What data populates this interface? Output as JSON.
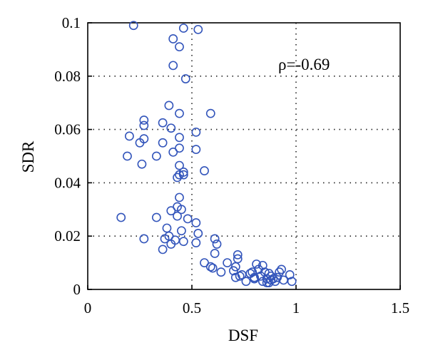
{
  "chart_data": {
    "type": "scatter",
    "title": "",
    "xlabel": "DSF",
    "ylabel": "SDR",
    "xlim": [
      0,
      1.5
    ],
    "ylim": [
      0,
      0.1
    ],
    "xticks": [
      0,
      0.5,
      1,
      1.5
    ],
    "xtick_labels": [
      "0",
      "0.5",
      "1",
      "1.5"
    ],
    "yticks": [
      0,
      0.02,
      0.04,
      0.06,
      0.08,
      0.1
    ],
    "ytick_labels": [
      "0",
      "0.02",
      "0.04",
      "0.06",
      "0.08",
      "0.1"
    ],
    "grid": "dotted",
    "marker_color": "#3355bb",
    "annotation": "ρ=-0.69",
    "series": [
      {
        "name": "samples",
        "points": [
          [
            0.22,
            0.099
          ],
          [
            0.46,
            0.098
          ],
          [
            0.53,
            0.0975
          ],
          [
            0.41,
            0.094
          ],
          [
            0.44,
            0.091
          ],
          [
            0.41,
            0.084
          ],
          [
            0.47,
            0.079
          ],
          [
            0.39,
            0.069
          ],
          [
            0.44,
            0.066
          ],
          [
            0.59,
            0.066
          ],
          [
            0.27,
            0.0635
          ],
          [
            0.27,
            0.0615
          ],
          [
            0.36,
            0.0625
          ],
          [
            0.4,
            0.0605
          ],
          [
            0.52,
            0.059
          ],
          [
            0.2,
            0.0575
          ],
          [
            0.27,
            0.0565
          ],
          [
            0.44,
            0.057
          ],
          [
            0.25,
            0.055
          ],
          [
            0.36,
            0.055
          ],
          [
            0.44,
            0.053
          ],
          [
            0.41,
            0.0515
          ],
          [
            0.52,
            0.0525
          ],
          [
            0.19,
            0.05
          ],
          [
            0.33,
            0.05
          ],
          [
            0.26,
            0.047
          ],
          [
            0.44,
            0.0465
          ],
          [
            0.56,
            0.0445
          ],
          [
            0.46,
            0.044
          ],
          [
            0.44,
            0.043
          ],
          [
            0.43,
            0.042
          ],
          [
            0.46,
            0.043
          ],
          [
            0.44,
            0.0345
          ],
          [
            0.43,
            0.031
          ],
          [
            0.4,
            0.0295
          ],
          [
            0.45,
            0.03
          ],
          [
            0.16,
            0.027
          ],
          [
            0.33,
            0.027
          ],
          [
            0.43,
            0.0275
          ],
          [
            0.48,
            0.0265
          ],
          [
            0.52,
            0.025
          ],
          [
            0.38,
            0.023
          ],
          [
            0.45,
            0.022
          ],
          [
            0.53,
            0.021
          ],
          [
            0.27,
            0.019
          ],
          [
            0.37,
            0.019
          ],
          [
            0.39,
            0.02
          ],
          [
            0.42,
            0.0185
          ],
          [
            0.4,
            0.017
          ],
          [
            0.46,
            0.018
          ],
          [
            0.52,
            0.0175
          ],
          [
            0.36,
            0.015
          ],
          [
            0.61,
            0.019
          ],
          [
            0.62,
            0.017
          ],
          [
            0.61,
            0.0135
          ],
          [
            0.56,
            0.01
          ],
          [
            0.59,
            0.0085
          ],
          [
            0.6,
            0.008
          ],
          [
            0.64,
            0.0065
          ],
          [
            0.67,
            0.01
          ],
          [
            0.72,
            0.013
          ],
          [
            0.72,
            0.0115
          ],
          [
            0.71,
            0.0085
          ],
          [
            0.7,
            0.007
          ],
          [
            0.74,
            0.0055
          ],
          [
            0.71,
            0.0045
          ],
          [
            0.73,
            0.005
          ],
          [
            0.76,
            0.003
          ],
          [
            0.79,
            0.0065
          ],
          [
            0.78,
            0.006
          ],
          [
            0.8,
            0.004
          ],
          [
            0.81,
            0.0095
          ],
          [
            0.82,
            0.0075
          ],
          [
            0.83,
            0.005
          ],
          [
            0.84,
            0.009
          ],
          [
            0.85,
            0.0065
          ],
          [
            0.86,
            0.004
          ],
          [
            0.87,
            0.006
          ],
          [
            0.88,
            0.005
          ],
          [
            0.88,
            0.0035
          ],
          [
            0.89,
            0.004
          ],
          [
            0.9,
            0.003
          ],
          [
            0.91,
            0.0045
          ],
          [
            0.92,
            0.0065
          ],
          [
            0.93,
            0.0075
          ],
          [
            0.94,
            0.0035
          ],
          [
            0.97,
            0.0055
          ],
          [
            0.98,
            0.003
          ],
          [
            0.84,
            0.003
          ],
          [
            0.86,
            0.0025
          ],
          [
            0.8,
            0.0045
          ],
          [
            0.87,
            0.0025
          ]
        ]
      }
    ]
  }
}
